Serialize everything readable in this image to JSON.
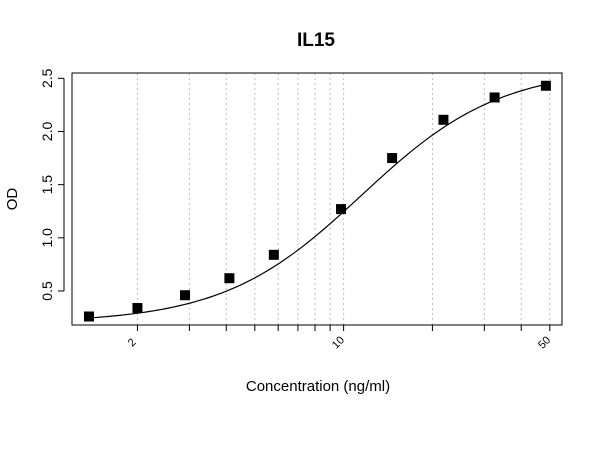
{
  "chart_data": {
    "type": "scatter",
    "title": "IL15",
    "xlabel": "Concentration (ng/ml)",
    "ylabel": "OD",
    "x_scale": "log",
    "xlim": [
      1.2,
      55
    ],
    "ylim": [
      0.18,
      2.55
    ],
    "x_ticks": [
      2,
      10,
      50
    ],
    "x_tick_labels": [
      "2",
      "10",
      "50"
    ],
    "y_ticks": [
      0.5,
      1.0,
      1.5,
      2.0,
      2.5
    ],
    "y_tick_labels": [
      "0.5",
      "1.0",
      "1.5",
      "2.0",
      "2.5"
    ],
    "x_grid": [
      2,
      3,
      4,
      5,
      6,
      7,
      8,
      9,
      10,
      20,
      30,
      40,
      50
    ],
    "grid": "vertical dotted",
    "series": [
      {
        "marker": "square",
        "color": "#000000",
        "x": [
          1.37,
          2.0,
          2.9,
          4.1,
          5.8,
          9.8,
          14.6,
          21.8,
          32.5,
          48.5
        ],
        "y": [
          0.26,
          0.34,
          0.46,
          0.62,
          0.84,
          1.27,
          1.75,
          2.11,
          2.32,
          2.43
        ]
      }
    ],
    "fit_curve": {
      "type": "4PL",
      "color": "#000000",
      "bottom": 0.2,
      "top": 2.6,
      "ec50": 11.5,
      "hill": 1.85
    }
  }
}
